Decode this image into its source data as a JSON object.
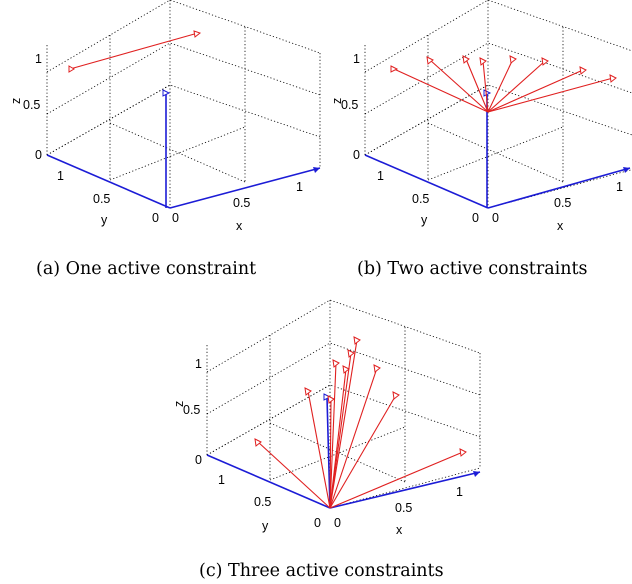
{
  "panels": [
    {
      "caption": "(a)  One active constraint",
      "labels": {
        "z_axis": "z",
        "x_axis": "x",
        "y_axis": "y",
        "z1": "1",
        "z05": "0.5",
        "z0": "0",
        "y1": "1",
        "y05": "0.5",
        "y0": "0",
        "x0": "0",
        "x05": "0.5",
        "x1": "1"
      }
    },
    {
      "caption": "(b)  Two active constraints",
      "labels": {
        "z_axis": "z",
        "x_axis": "x",
        "y_axis": "y",
        "z1": "1",
        "z05": "0.5",
        "z0": "0",
        "y1": "1",
        "y05": "0.5",
        "y0": "0",
        "x0": "0",
        "x05": "0.5",
        "x1": "1"
      }
    },
    {
      "caption": "(c)  Three active constraints",
      "labels": {
        "z_axis": "z",
        "x_axis": "x",
        "y_axis": "y",
        "z1": "1",
        "z05": "0.5",
        "z0": "0",
        "y1": "1",
        "y05": "0.5",
        "y0": "0",
        "x0": "0",
        "x05": "0.5",
        "x1": "1"
      }
    }
  ],
  "colors": {
    "constraint_vectors": "#e02020",
    "axes_and_normal": "#1c1cd6"
  }
}
